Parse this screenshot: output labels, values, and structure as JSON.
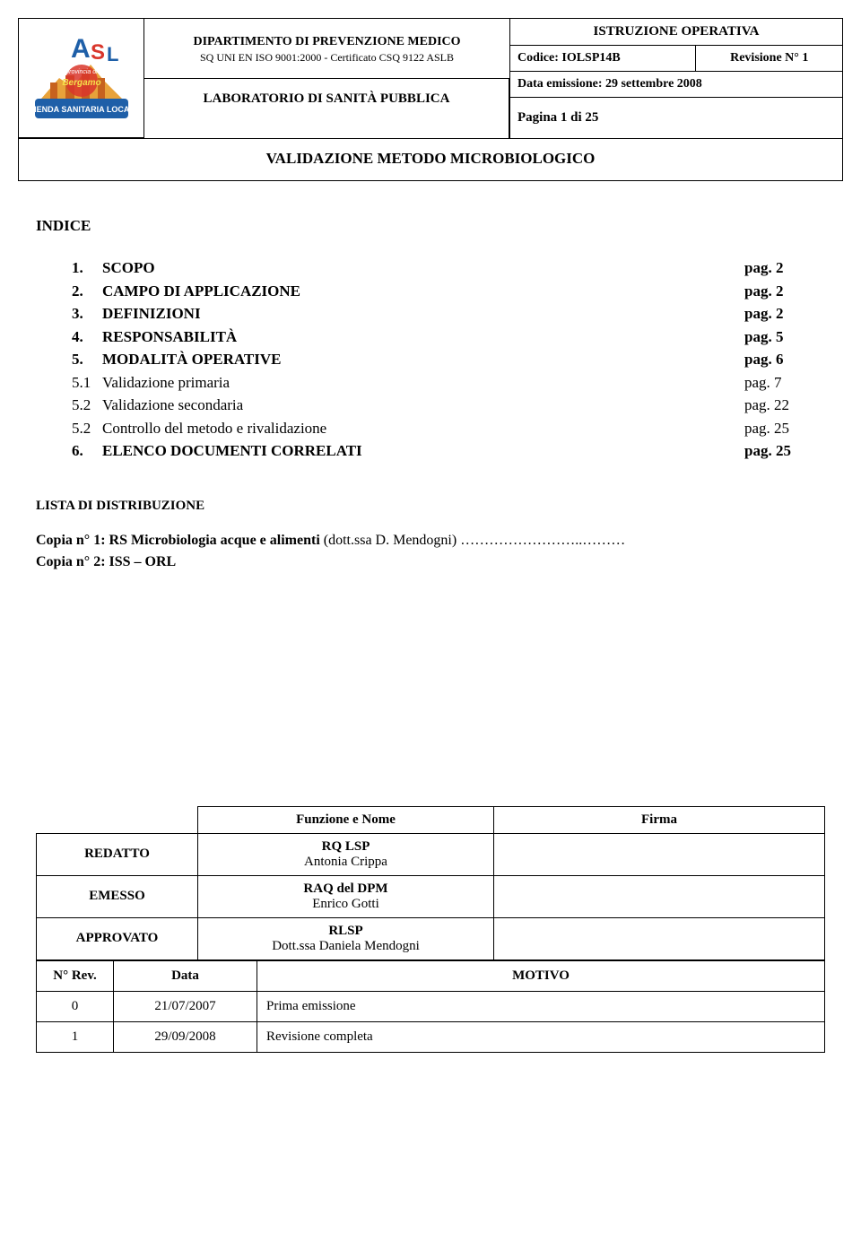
{
  "header": {
    "dept_line1": "DIPARTIMENTO DI PREVENZIONE MEDICO",
    "dept_line2": "SQ UNI EN ISO 9001:2000 - Certificato CSQ 9122 ASLB",
    "lab": "LABORATORIO DI SANITÀ PUBBLICA",
    "istruzione": "ISTRUZIONE OPERATIVA",
    "codice_label": "Codice: IOLSP14B",
    "revisione": "Revisione N° 1",
    "data_emissione": "Data emissione: 29 settembre 2008",
    "pagina": "Pagina 1 di 25",
    "title": "VALIDAZIONE METODO MICROBIOLOGICO"
  },
  "indice_label": "INDICE",
  "toc": [
    {
      "num": "1.",
      "text": "SCOPO",
      "page": "pag. 2",
      "bold": true
    },
    {
      "num": "2.",
      "text": "CAMPO DI APPLICAZIONE",
      "page": "pag. 2",
      "bold": true
    },
    {
      "num": "3.",
      "text": "DEFINIZIONI",
      "page": "pag. 2",
      "bold": true
    },
    {
      "num": "4.",
      "text": "RESPONSABILITÀ",
      "page": "pag. 5",
      "bold": true
    },
    {
      "num": "5.",
      "text": "MODALITÀ OPERATIVE",
      "page": "pag. 6",
      "bold": true
    },
    {
      "num": "5.1",
      "text": "Validazione primaria",
      "page": "pag. 7",
      "bold": false
    },
    {
      "num": "5.2",
      "text": "Validazione secondaria",
      "page": "pag. 22",
      "bold": false
    },
    {
      "num": "5.2",
      "text": "Controllo del metodo e rivalidazione",
      "page": "pag. 25",
      "bold": false
    },
    {
      "num": "6.",
      "text": "ELENCO DOCUMENTI CORRELATI",
      "page": "pag. 25",
      "bold": true
    }
  ],
  "lista_label": "LISTA DI DISTRIBUZIONE",
  "copia1_bold": "Copia n° 1: RS Microbiologia acque e alimenti ",
  "copia1_rest": "(dott.ssa D. Mendogni) ……………………..………",
  "copia2": "Copia n° 2: ISS – ORL",
  "bottom": {
    "funzione_header": "Funzione e Nome",
    "firma_header": "Firma",
    "rows": [
      {
        "label": "REDATTO",
        "func_line1": "RQ LSP",
        "func_line2": "Antonia Crippa"
      },
      {
        "label": "EMESSO",
        "func_line1": "RAQ del DPM",
        "func_line2": "Enrico Gotti"
      },
      {
        "label": "APPROVATO",
        "func_line1": "RLSP",
        "func_line2": "Dott.ssa Daniela Mendogni"
      }
    ],
    "rev_headers": {
      "nrev": "N° Rev.",
      "data": "Data",
      "motivo": "MOTIVO"
    },
    "rev_rows": [
      {
        "n": "0",
        "data": "21/07/2007",
        "motivo": "Prima emissione"
      },
      {
        "n": "1",
        "data": "29/09/2008",
        "motivo": "Revisione completa"
      }
    ]
  }
}
